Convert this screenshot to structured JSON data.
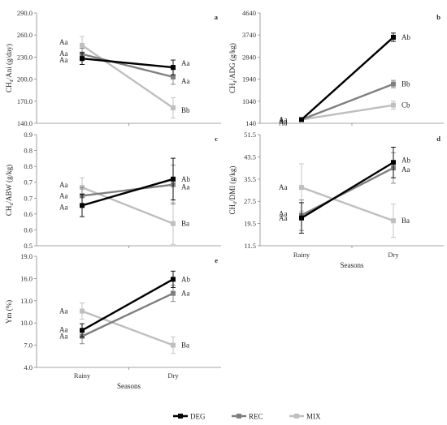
{
  "legend": [
    {
      "name": "DEG",
      "color": "#000000"
    },
    {
      "name": "REC",
      "color": "#7f7f7f"
    },
    {
      "name": "MIX",
      "color": "#bfbfbf"
    }
  ],
  "chart_data": [
    {
      "panel": "a",
      "type": "line",
      "ylabel": "CH₄/Ani (g/day)",
      "categories": [
        "Rainy",
        "Dry"
      ],
      "ylim": [
        140,
        290
      ],
      "yticks": [
        "140.0",
        "170.0",
        "200.0",
        "230.0",
        "260.0",
        "290.0"
      ],
      "series": [
        {
          "name": "DEG",
          "values": [
            228,
            216
          ],
          "err": [
            8,
            10
          ],
          "labels": [
            "Aa",
            "Aa"
          ]
        },
        {
          "name": "REC",
          "values": [
            234,
            203
          ],
          "err": [
            8,
            10
          ],
          "labels": [
            "Aa",
            "Aa"
          ]
        },
        {
          "name": "MIX",
          "values": [
            246,
            161
          ],
          "err": [
            12,
            14
          ],
          "labels": [
            "Aa",
            "Bb"
          ]
        }
      ]
    },
    {
      "panel": "b",
      "type": "line",
      "ylabel": "CH₄/ADG (g/kg)",
      "categories": [
        "Rainy",
        "Dry"
      ],
      "ylim": [
        140,
        4640
      ],
      "yticks": [
        "140",
        "1040",
        "1940",
        "2840",
        "3740",
        "4640"
      ],
      "series": [
        {
          "name": "DEG",
          "values": [
            290,
            3650
          ],
          "err": [
            20,
            170
          ],
          "labels": [
            "Aa",
            "Ab"
          ]
        },
        {
          "name": "REC",
          "values": [
            290,
            1740
          ],
          "err": [
            20,
            150
          ],
          "labels": [
            "Aa",
            "Bb"
          ]
        },
        {
          "name": "MIX",
          "values": [
            290,
            880
          ],
          "err": [
            20,
            170
          ],
          "labels": [
            "Aa",
            "Cb"
          ]
        }
      ]
    },
    {
      "panel": "c",
      "type": "line",
      "ylabel": "CH₄/ABW (g/kg)",
      "categories": [
        "Rainy",
        "Dry"
      ],
      "ylim": [
        0.5,
        0.9
      ],
      "yticks": [
        "0.5",
        "0.6",
        "0.6",
        "0.7",
        "0.7",
        "0.8",
        "0.8",
        "0.9"
      ],
      "series": [
        {
          "name": "DEG",
          "values": [
            0.645,
            0.74
          ],
          "err": [
            0.04,
            0.075
          ],
          "labels": [
            "Aa",
            "Ab"
          ]
        },
        {
          "name": "REC",
          "values": [
            0.68,
            0.72
          ],
          "err": [
            0.03,
            0.07
          ],
          "labels": [
            "Aa",
            "Aa"
          ]
        },
        {
          "name": "MIX",
          "values": [
            0.71,
            0.58
          ],
          "err": [
            0.035,
            0.075
          ],
          "labels": [
            "Aa",
            "Ba"
          ]
        }
      ]
    },
    {
      "panel": "d",
      "type": "line",
      "ylabel": "CH₄/DMI (g/kg)",
      "categories": [
        "Rainy",
        "Dry"
      ],
      "xlabel": "Seasons",
      "ylim": [
        11.5,
        51.5
      ],
      "yticks": [
        "11.5",
        "19.5",
        "27.5",
        "35.5",
        "43.5",
        "51.5"
      ],
      "series": [
        {
          "name": "DEG",
          "values": [
            21.5,
            41.5
          ],
          "err": [
            5.5,
            5.5
          ],
          "labels": [
            "Aa",
            "Ab"
          ]
        },
        {
          "name": "REC",
          "values": [
            22.5,
            39.5
          ],
          "err": [
            5.5,
            5.5
          ],
          "labels": [
            "Aa",
            "Aa"
          ]
        },
        {
          "name": "MIX",
          "values": [
            32.5,
            20.5
          ],
          "err": [
            8.5,
            6.0
          ],
          "labels": [
            "Aa",
            "Ba"
          ]
        }
      ]
    },
    {
      "panel": "e",
      "type": "line",
      "ylabel": "Ym (%)",
      "categories": [
        "Rainy",
        "Dry"
      ],
      "xlabel": "Seasons",
      "ylim": [
        4.0,
        19.0
      ],
      "yticks": [
        "4.0",
        "7.0",
        "10.0",
        "13.0",
        "16.0",
        "19.0"
      ],
      "series": [
        {
          "name": "DEG",
          "values": [
            9.0,
            15.9
          ],
          "err": [
            0.9,
            1.1
          ],
          "labels": [
            "Aa",
            "Ab"
          ]
        },
        {
          "name": "REC",
          "values": [
            8.2,
            14.0
          ],
          "err": [
            1.0,
            1.1
          ],
          "labels": [
            "Aa",
            "Aa"
          ]
        },
        {
          "name": "MIX",
          "values": [
            11.6,
            7.0
          ],
          "err": [
            1.1,
            1.1
          ],
          "labels": [
            "Aa",
            "Ba"
          ]
        }
      ]
    }
  ]
}
